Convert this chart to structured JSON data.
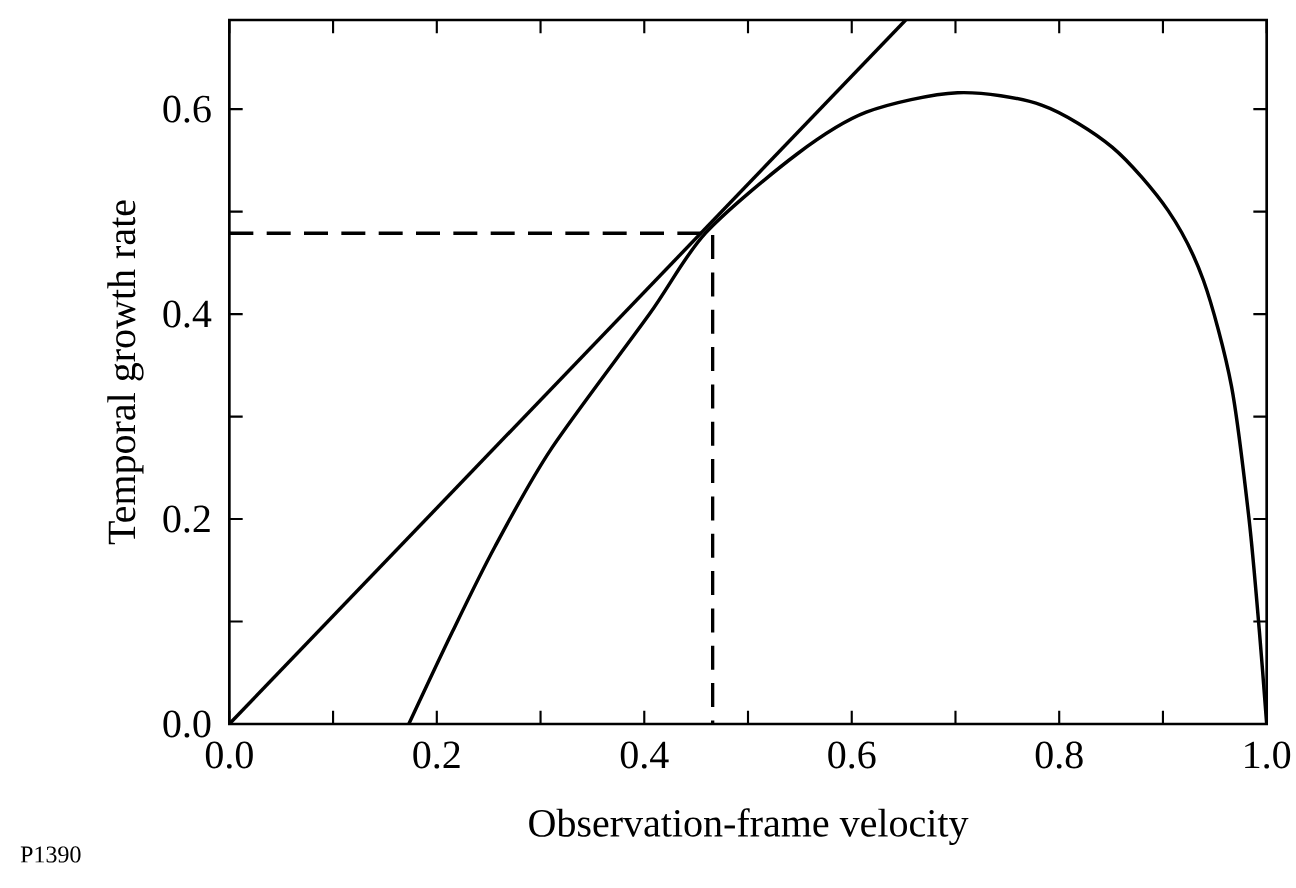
{
  "chart_data": {
    "type": "line",
    "xlabel": "Observation-frame velocity",
    "ylabel": "Temporal growth rate",
    "annotations": [
      "P1390"
    ],
    "xlim": [
      0,
      1
    ],
    "ylim": [
      0,
      0.687
    ],
    "xticks": [
      {
        "value": 0,
        "label": "0.0"
      },
      {
        "value": 0.1,
        "label": null
      },
      {
        "value": 0.2,
        "label": "0.2"
      },
      {
        "value": 0.3,
        "label": null
      },
      {
        "value": 0.4,
        "label": "0.4"
      },
      {
        "value": 0.5,
        "label": null
      },
      {
        "value": 0.6,
        "label": "0.6"
      },
      {
        "value": 0.7,
        "label": null
      },
      {
        "value": 0.8,
        "label": "0.8"
      },
      {
        "value": 0.9,
        "label": null
      },
      {
        "value": 1,
        "label": "1.0"
      }
    ],
    "yticks": [
      {
        "value": 0,
        "label": "0.0"
      },
      {
        "value": 0.1,
        "label": null
      },
      {
        "value": 0.2,
        "label": "0.2"
      },
      {
        "value": 0.3,
        "label": null
      },
      {
        "value": 0.4,
        "label": "0.4"
      },
      {
        "value": 0.5,
        "label": null
      },
      {
        "value": 0.6,
        "label": "0.6"
      }
    ],
    "grid": false,
    "series": [
      {
        "color": "#000000",
        "line_style": "solid",
        "x": [
          0.173,
          0.215,
          0.256,
          0.31,
          0.405,
          0.459,
          0.547,
          0.614,
          0.702,
          0.783,
          0.851,
          0.905,
          0.939,
          0.966,
          0.983,
          0.993,
          1.0
        ],
        "values": [
          0,
          0.09,
          0.173,
          0.268,
          0.4,
          0.479,
          0.556,
          0.597,
          0.616,
          0.604,
          0.563,
          0.501,
          0.433,
          0.33,
          0.2,
          0.09,
          0
        ]
      },
      {
        "color": "#000000",
        "line_style": "solid",
        "x": [
          0,
          0.652
        ],
        "values": [
          0,
          0.687
        ]
      },
      {
        "color": "#000000",
        "line_style": "dashed",
        "x": [
          0,
          0.466,
          0.466
        ],
        "values": [
          0.479,
          0.479,
          0
        ]
      }
    ]
  }
}
